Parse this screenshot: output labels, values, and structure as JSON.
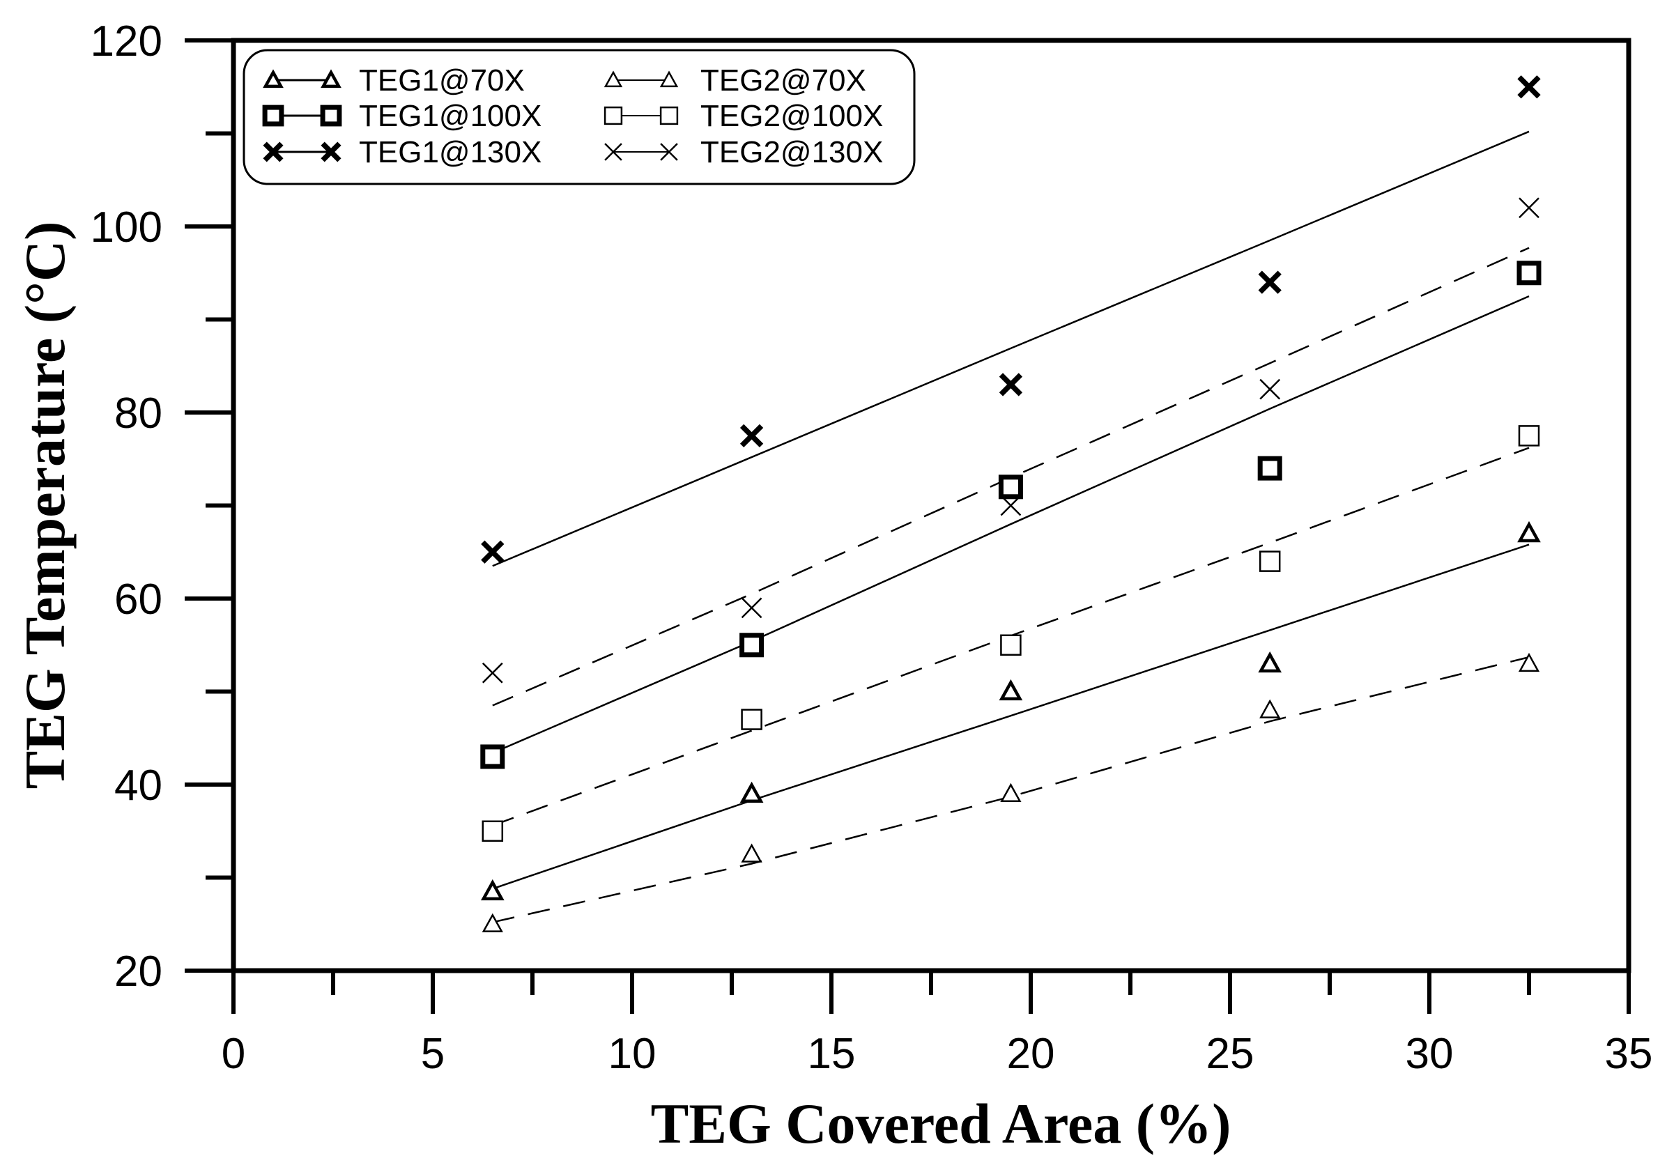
{
  "chart_data": {
    "type": "scatter",
    "xlabel": "TEG Covered Area (%)",
    "ylabel": "TEG Temperature (°C)",
    "xlim": [
      0,
      35
    ],
    "ylim": [
      20,
      120
    ],
    "x_ticks": [
      "0",
      "5",
      "10",
      "15",
      "20",
      "25",
      "30",
      "35"
    ],
    "y_ticks": [
      "20",
      "40",
      "60",
      "80",
      "100",
      "120"
    ],
    "grid": false,
    "legend_position": "top-left",
    "x": [
      6.5,
      13,
      19.5,
      26,
      32.5
    ],
    "series": [
      {
        "name": "TEG1@70X",
        "marker": "triangle",
        "bold": true,
        "line": "solid",
        "values": [
          28.5,
          39,
          50,
          53,
          67
        ],
        "fit": [
          28.8,
          38.3,
          47.4,
          56.6,
          65.8
        ]
      },
      {
        "name": "TEG2@70X",
        "marker": "triangle",
        "bold": false,
        "line": "dashed",
        "values": [
          25,
          32.5,
          39,
          48,
          53
        ],
        "fit": [
          25.2,
          31.5,
          38.7,
          46.8,
          53.7
        ]
      },
      {
        "name": "TEG1@100X",
        "marker": "square",
        "bold": true,
        "line": "solid",
        "values": [
          43,
          55,
          72,
          74,
          95
        ],
        "fit": [
          43.4,
          55.4,
          68,
          80.4,
          92.5
        ]
      },
      {
        "name": "TEG2@100X",
        "marker": "square",
        "bold": false,
        "line": "dashed",
        "values": [
          35,
          47,
          55,
          64,
          77.5
        ],
        "fit": [
          35.6,
          45.8,
          56,
          66,
          76.2
        ]
      },
      {
        "name": "TEG1@130X",
        "marker": "x",
        "bold": true,
        "line": "solid",
        "values": [
          65,
          77.5,
          83,
          94,
          115
        ],
        "fit": [
          63.5,
          75.2,
          86.9,
          98.5,
          110.2
        ]
      },
      {
        "name": "TEG2@130X",
        "marker": "x",
        "bold": false,
        "line": "dashed",
        "values": [
          52,
          59,
          70,
          82.5,
          102
        ],
        "fit": [
          48.5,
          60.5,
          73,
          85.3,
          97.7
        ]
      }
    ]
  }
}
